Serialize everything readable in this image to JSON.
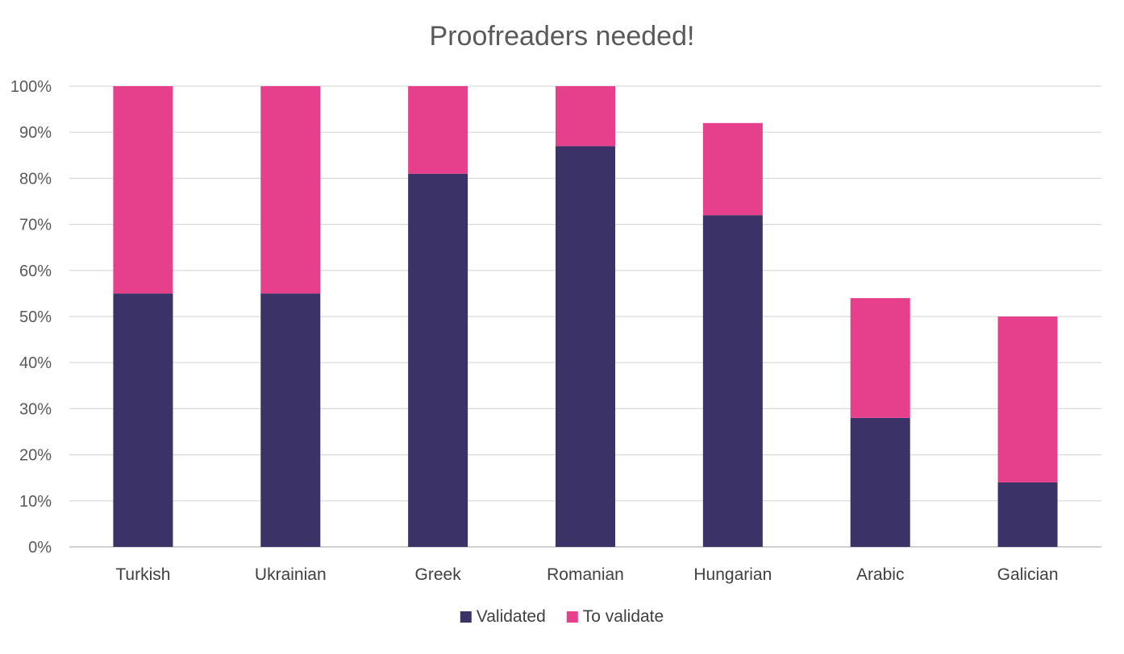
{
  "chart_data": {
    "type": "bar",
    "stacked": true,
    "title": "Proofreaders needed!",
    "xlabel": "",
    "ylabel": "",
    "categories": [
      "Turkish",
      "Ukrainian",
      "Greek",
      "Romanian",
      "Hungarian",
      "Arabic",
      "Galician"
    ],
    "series": [
      {
        "name": "Validated",
        "color": "#3b3267",
        "values": [
          55,
          55,
          81,
          87,
          72,
          28,
          14
        ]
      },
      {
        "name": "To validate",
        "color": "#e63f8b",
        "values": [
          45,
          45,
          19,
          13,
          20,
          26,
          36
        ]
      }
    ],
    "ylim": [
      0,
      100
    ],
    "yticks": [
      "0%",
      "10%",
      "20%",
      "30%",
      "40%",
      "50%",
      "60%",
      "70%",
      "80%",
      "90%",
      "100%"
    ],
    "grid": true,
    "legend": "bottom-center"
  }
}
